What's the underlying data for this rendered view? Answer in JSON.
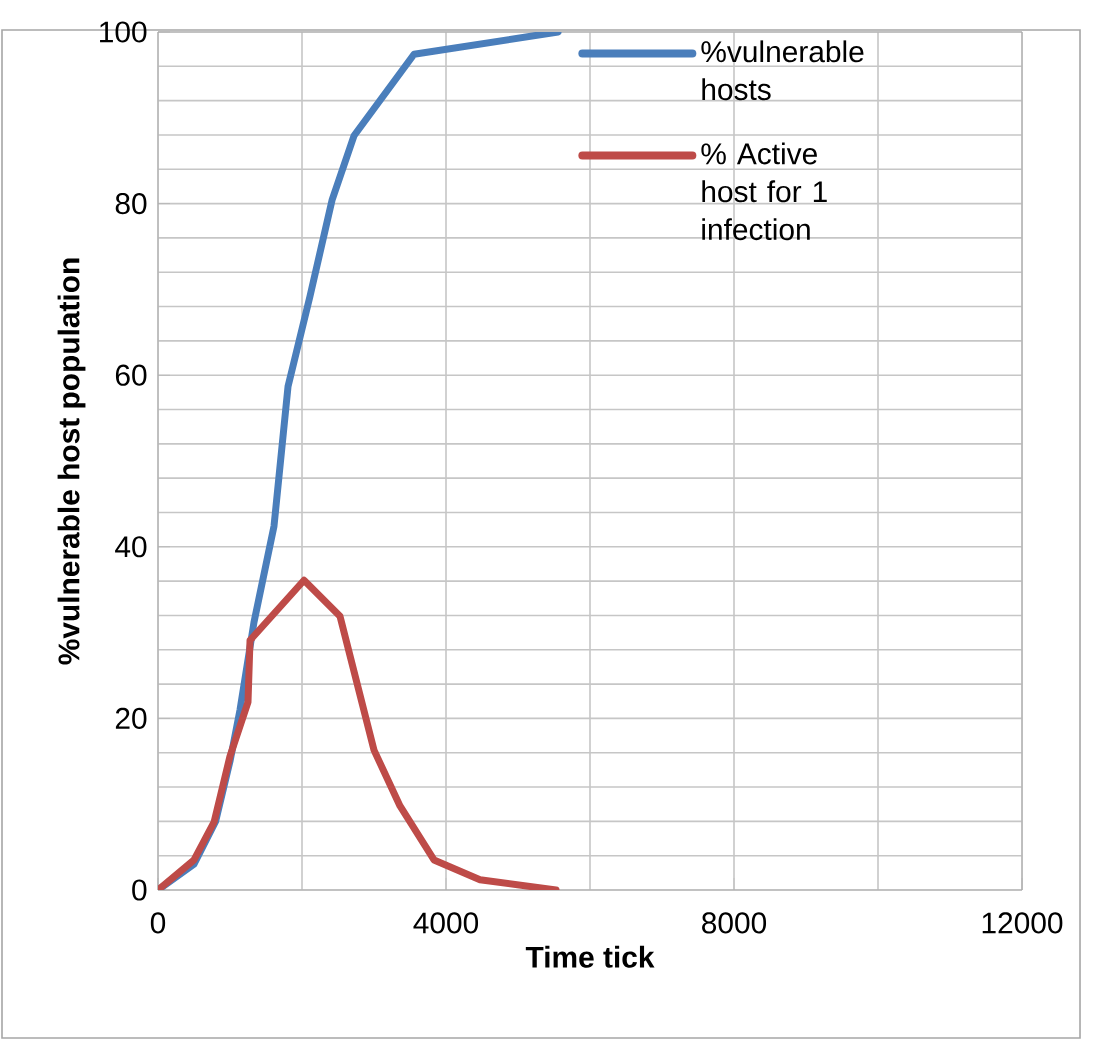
{
  "chart_data": {
    "type": "line",
    "xlabel": "Time tick",
    "ylabel": "%vulnerable host population",
    "xlim": [
      0,
      12000
    ],
    "ylim": [
      0,
      100
    ],
    "xticks": [
      0,
      4000,
      8000,
      12000
    ],
    "yticks": [
      0,
      20,
      40,
      60,
      80,
      100
    ],
    "grid": true,
    "legend": "top right",
    "marker": "none",
    "series": [
      {
        "name": "%vulnerable hosts",
        "color": "#4a7ebb",
        "x": [
          0,
          500,
          800,
          1000,
          1139,
          1333,
          1611,
          1806,
          2111,
          2417,
          2722,
          3556,
          5556
        ],
        "values": [
          0,
          3,
          8,
          15,
          21,
          31.2,
          42.4,
          58.7,
          69.2,
          80.4,
          87.9,
          97.4,
          100
        ]
      },
      {
        "name": "% Active host for 1 infection",
        "color": "#be4b48",
        "x": [
          0,
          500,
          778,
          1000,
          1250,
          1278,
          2028,
          2528,
          3000,
          3361,
          3833,
          4472,
          5528
        ],
        "values": [
          0,
          3.5,
          7.9,
          15.6,
          21.9,
          29.1,
          36.1,
          31.9,
          16.3,
          9.8,
          3.5,
          1.2,
          0
        ]
      }
    ]
  }
}
